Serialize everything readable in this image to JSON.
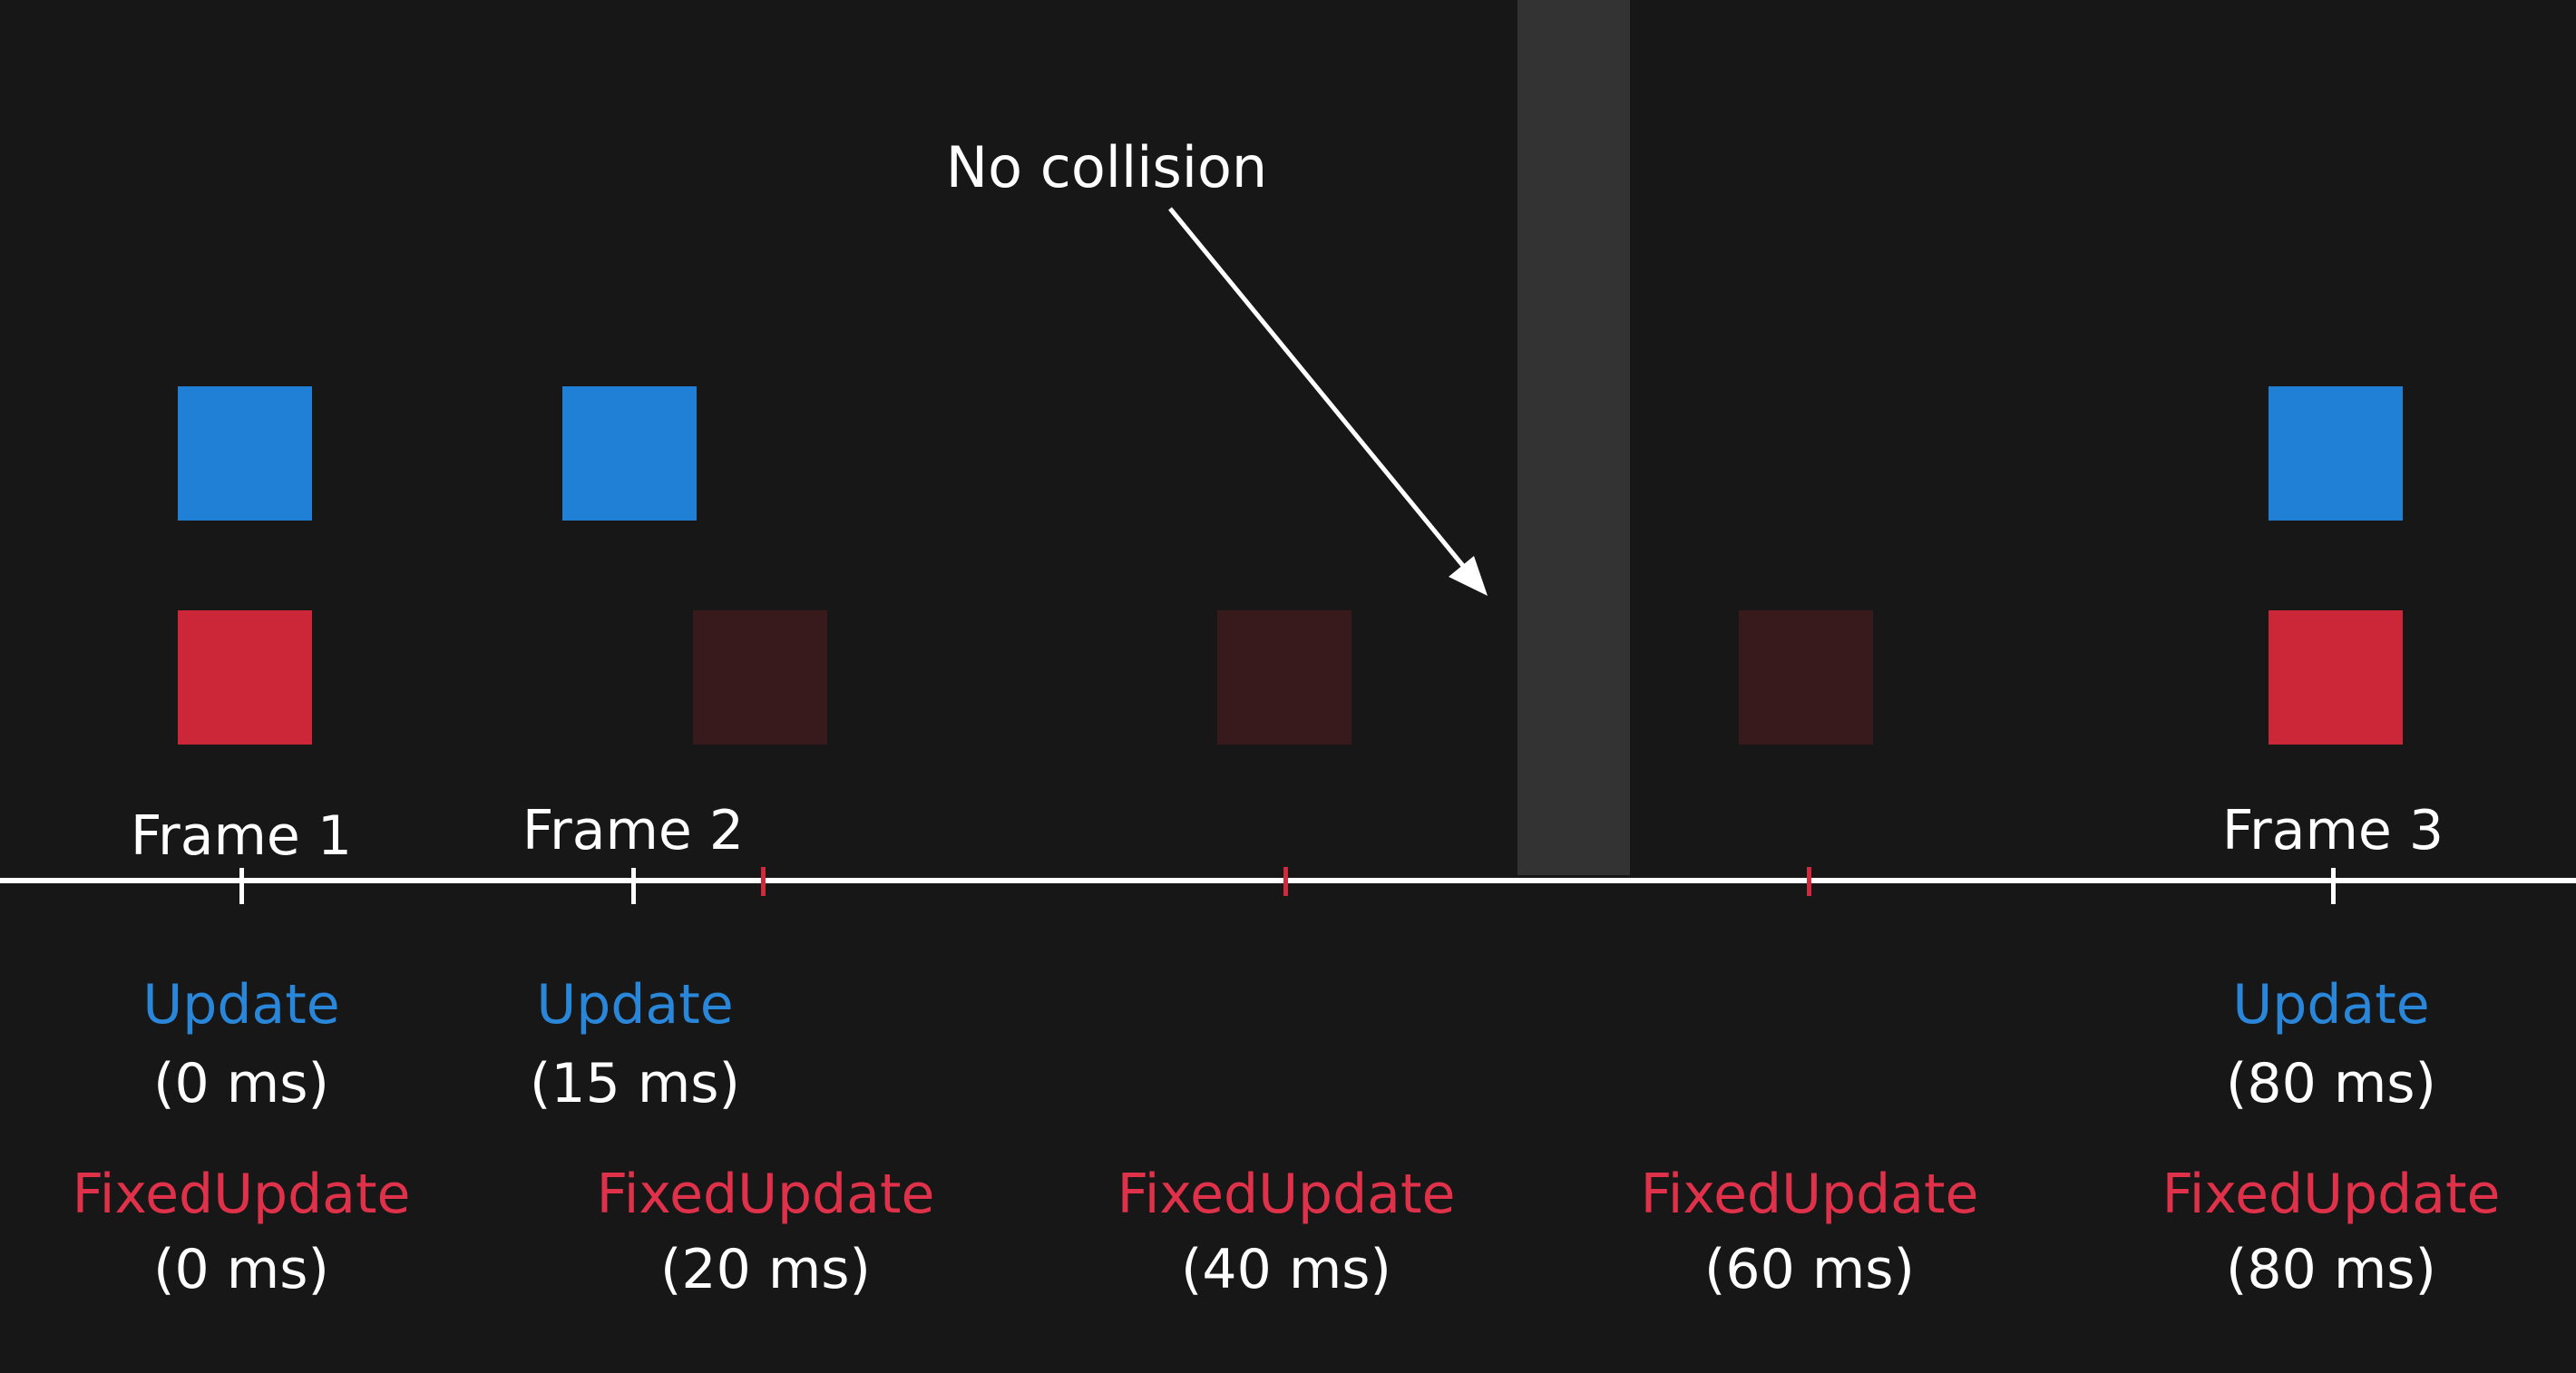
{
  "annotation": {
    "text": "No collision"
  },
  "frames": [
    {
      "label": "Frame 1",
      "update_label": "Update",
      "update_time": "(0 ms)"
    },
    {
      "label": "Frame 2",
      "update_label": "Update",
      "update_time": "(15 ms)"
    },
    {
      "label": "Frame 3",
      "update_label": "Update",
      "update_time": "(80 ms)"
    }
  ],
  "fixed_updates": [
    {
      "label": "FixedUpdate",
      "time": "(0 ms)"
    },
    {
      "label": "FixedUpdate",
      "time": "(20 ms)"
    },
    {
      "label": "FixedUpdate",
      "time": "(40 ms)"
    },
    {
      "label": "FixedUpdate",
      "time": "(60 ms)"
    },
    {
      "label": "FixedUpdate",
      "time": "(80 ms)"
    }
  ],
  "colors": {
    "background": "#171717",
    "wall": "#333333",
    "update_blue": "#1f80d5",
    "fixed_red": "#cc2639",
    "ghost_red": "#381a1d",
    "text": "#ffffff"
  }
}
